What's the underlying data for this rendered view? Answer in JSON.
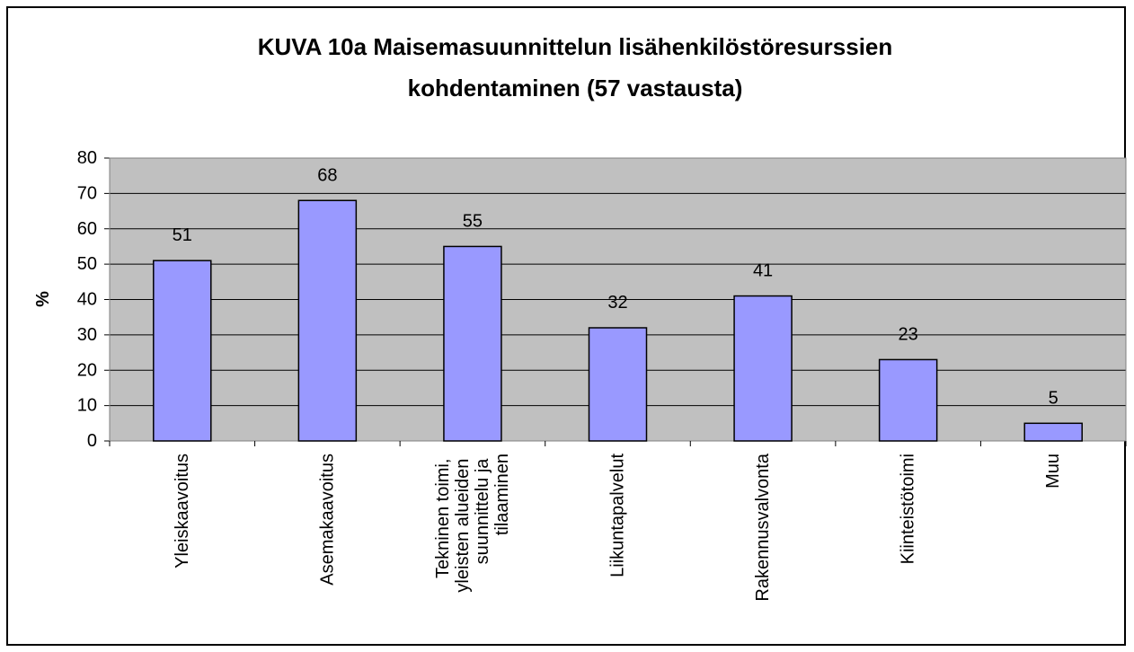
{
  "chart_data": {
    "type": "bar",
    "title": [
      "KUVA 10a Maisemasuunnittelun lisähenkilöstöresurssien",
      "kohdentaminen (57 vastausta)"
    ],
    "y_label": "%",
    "categories": [
      "Yleiskaavoitus",
      "Asemakaavoitus",
      "Tekninen toimi, yleisten alueiden suunnittelu ja tilaaminen",
      "Liikuntapalvelut",
      "Rakennusvalvonta",
      "Kiinteistötoimi",
      "Muu"
    ],
    "values": [
      51,
      68,
      55,
      32,
      41,
      23,
      5
    ],
    "color": "#9999ff",
    "ylim": [
      0,
      80
    ],
    "yticks": [
      0,
      10,
      20,
      30,
      40,
      50,
      60,
      70,
      80
    ],
    "grid": true
  }
}
